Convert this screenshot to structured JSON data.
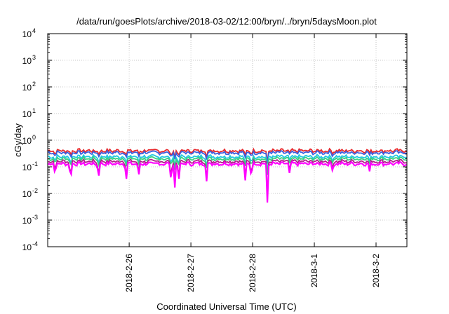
{
  "chart_data": {
    "type": "line",
    "title": "/data/run/goesPlots/archive/2018-03-02/12:00/bryn/../bryn/5daysMoon.plot",
    "xlabel": "Coordinated Universal Time (UTC)",
    "ylabel": "cGy/day",
    "yscale": "log",
    "ylim": [
      0.0001,
      10000
    ],
    "xlim": [
      -1.32,
      4.5
    ],
    "x_unit": "days relative to 2018-2-26",
    "grid": true,
    "legend": "none",
    "y_ticks": [
      {
        "base": "10",
        "exp": "-4",
        "value": 0.0001
      },
      {
        "base": "10",
        "exp": "-3",
        "value": 0.001
      },
      {
        "base": "10",
        "exp": "-2",
        "value": 0.01
      },
      {
        "base": "10",
        "exp": "-1",
        "value": 0.1
      },
      {
        "base": "10",
        "exp": "0",
        "value": 1
      },
      {
        "base": "10",
        "exp": "1",
        "value": 10
      },
      {
        "base": "10",
        "exp": "2",
        "value": 100
      },
      {
        "base": "10",
        "exp": "3",
        "value": 1000
      },
      {
        "base": "10",
        "exp": "4",
        "value": 10000
      }
    ],
    "x_ticks": [
      {
        "label": "2018-2-26",
        "x": 0
      },
      {
        "label": "2018-2-27",
        "x": 1
      },
      {
        "label": "2018-2-28",
        "x": 2
      },
      {
        "label": "2018-3-1",
        "x": 3
      },
      {
        "label": "2018-3-2",
        "x": 4
      }
    ],
    "series": [
      {
        "color": "#e8282c",
        "base": 0.4
      },
      {
        "color": "#3a5fe0",
        "base": 0.34
      },
      {
        "color": "#20c8e0",
        "base": 0.24
      },
      {
        "color": "#3ad080",
        "base": 0.2
      },
      {
        "color": "#b0208a",
        "base": 0.16
      },
      {
        "color": "#ff00ff",
        "base": 0.13
      }
    ],
    "dips": [
      {
        "x": -1.2,
        "depth": 0.45
      },
      {
        "x": -0.95,
        "depth": 0.8
      },
      {
        "x": -0.5,
        "depth": 0.7
      },
      {
        "x": -0.05,
        "depth": 0.7
      },
      {
        "x": 0.15,
        "depth": 0.6
      },
      {
        "x": 0.68,
        "depth": 0.85
      },
      {
        "x": 0.74,
        "depth": 0.9
      },
      {
        "x": 0.8,
        "depth": 0.85
      },
      {
        "x": 1.25,
        "depth": 0.7
      },
      {
        "x": 1.88,
        "depth": 0.7
      },
      {
        "x": 1.98,
        "depth": 0.6
      },
      {
        "x": 2.24,
        "depth": 1.5
      },
      {
        "x": 2.6,
        "depth": 0.4
      },
      {
        "x": 3.3,
        "depth": 0.35
      },
      {
        "x": 3.9,
        "depth": 0.35
      }
    ]
  }
}
